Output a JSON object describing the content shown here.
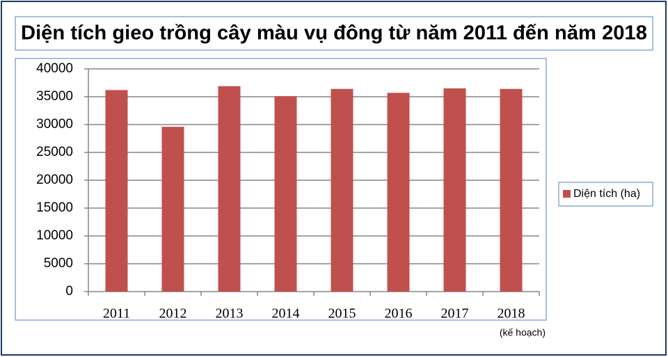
{
  "chart_data": {
    "type": "bar",
    "title": "Diện tích gieo trồng cây màu vụ đông từ năm 2011 đến năm 2018",
    "categories": [
      "2011",
      "2012",
      "2013",
      "2014",
      "2015",
      "2016",
      "2017",
      "2018"
    ],
    "series": [
      {
        "name": "Diện tích (ha)",
        "color": "#c0504d",
        "values": [
          36200,
          29600,
          36900,
          35100,
          36400,
          35700,
          36500,
          36400
        ]
      }
    ],
    "annotation": "(kế hoạch)",
    "ylim": [
      0,
      40000
    ],
    "yticks": [
      0,
      5000,
      10000,
      15000,
      20000,
      25000,
      30000,
      35000,
      40000
    ],
    "grid": true,
    "legend": "right"
  }
}
